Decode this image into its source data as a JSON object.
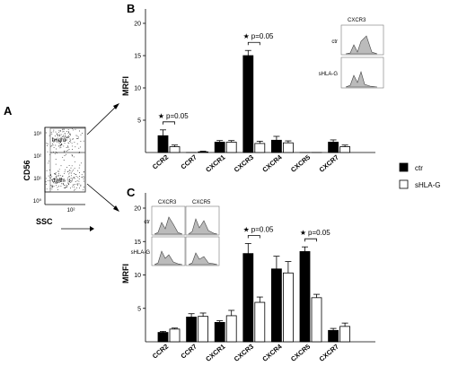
{
  "panel_a": {
    "letter": "A",
    "ylabel": "CD56",
    "xlabel": "SSC",
    "gate_labels": [
      "bright",
      "dimm"
    ],
    "tick_labels": [
      "10³",
      "10²",
      "10¹",
      "10⁰",
      "10²"
    ]
  },
  "legend": {
    "items": [
      {
        "label": "ctr",
        "fill": "#000000"
      },
      {
        "label": "sHLA-G",
        "fill": "#ffffff"
      }
    ]
  },
  "chart_data": [
    {
      "panel": "B",
      "type": "bar",
      "ylabel": "MRFI",
      "ylim": [
        0,
        20
      ],
      "yticks": [
        5,
        10,
        15,
        20
      ],
      "categories": [
        "CCR2",
        "CCR7",
        "CXCR1",
        "CXCR3",
        "CXCR4",
        "CXCR5",
        "CXCR7"
      ],
      "series": [
        {
          "name": "ctr",
          "color": "#000000",
          "values": [
            2.6,
            0.0,
            1.6,
            15.0,
            1.9,
            0.0,
            1.6
          ],
          "errors": [
            0.9,
            0.0,
            0.25,
            0.8,
            0.6,
            0.0,
            0.35
          ]
        },
        {
          "name": "sHLA-G",
          "color": "#ffffff",
          "values": [
            0.9,
            0.1,
            1.6,
            1.4,
            1.5,
            0.0,
            0.9
          ],
          "errors": [
            0.25,
            0.1,
            0.25,
            0.35,
            0.3,
            0.0,
            0.25
          ]
        }
      ],
      "annotations": [
        {
          "category": "CCR2",
          "text": "p=0.05",
          "star": "★"
        },
        {
          "category": "CXCR3",
          "text": "p=0.05",
          "star": "★"
        }
      ],
      "inset": {
        "title": "CXCR3",
        "row_labels": [
          "ctr",
          "sHLA-G"
        ]
      },
      "grid": false
    },
    {
      "panel": "C",
      "type": "bar",
      "ylabel": "MRFI",
      "ylim": [
        0,
        20
      ],
      "yticks": [
        5,
        10,
        15,
        20
      ],
      "categories": [
        "CCR2",
        "CCR7",
        "CXCR1",
        "CXCR3",
        "CXCR4",
        "CXCR5",
        "CXCR7"
      ],
      "series": [
        {
          "name": "ctr",
          "color": "#000000",
          "values": [
            1.4,
            3.7,
            2.9,
            13.2,
            10.9,
            13.5,
            1.7
          ],
          "errors": [
            0.15,
            0.5,
            0.25,
            1.5,
            1.9,
            0.7,
            0.3
          ]
        },
        {
          "name": "sHLA-G",
          "color": "#ffffff",
          "values": [
            1.9,
            3.8,
            3.9,
            5.9,
            10.3,
            6.6,
            2.3
          ],
          "errors": [
            0.15,
            0.5,
            0.8,
            0.8,
            1.7,
            0.5,
            0.5
          ]
        }
      ],
      "annotations": [
        {
          "category": "CXCR3",
          "text": "p=0.05",
          "star": "★"
        },
        {
          "category": "CXCR5",
          "text": "p=0.05",
          "star": "★"
        }
      ],
      "inset": {
        "titles": [
          "CXCR3",
          "CXCR5"
        ],
        "row_labels": [
          "ctr",
          "sHLA-G"
        ]
      },
      "grid": false
    }
  ]
}
